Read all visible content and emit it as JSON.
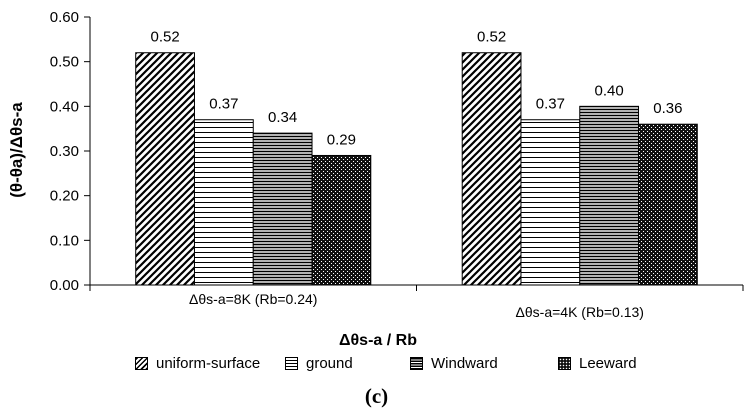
{
  "chart_data": {
    "type": "bar",
    "categories": [
      "Δθs-a=8K (Rb=0.24)",
      "Δθs-a=4K (Rb=0.13)"
    ],
    "series": [
      {
        "name": "uniform-surface",
        "values": [
          0.52,
          0.52
        ],
        "pattern": "diagonal"
      },
      {
        "name": "ground",
        "values": [
          0.37,
          0.37
        ],
        "pattern": "horizontal-sparse"
      },
      {
        "name": "Windward",
        "values": [
          0.34,
          0.4
        ],
        "pattern": "horizontal-dense"
      },
      {
        "name": "Leeward",
        "values": [
          0.29,
          0.36
        ],
        "pattern": "dotted-dark"
      }
    ],
    "data_labels": [
      [
        "0.52",
        "0.37",
        "0.34",
        "0.29"
      ],
      [
        "0.52",
        "0.37",
        "0.40",
        "0.36"
      ]
    ],
    "xlabel": "Δθs-a / Rb",
    "ylabel": "(θ-θa)/Δθs-a",
    "ylim": [
      0,
      0.6
    ],
    "yticks": [
      "0.00",
      "0.10",
      "0.20",
      "0.30",
      "0.40",
      "0.50",
      "0.60"
    ],
    "grid": false,
    "legend_position": "bottom"
  },
  "caption": "(c)"
}
